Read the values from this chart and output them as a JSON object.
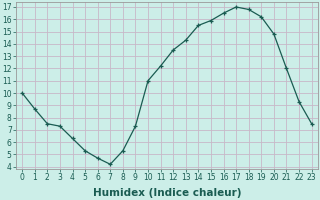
{
  "x": [
    0,
    1,
    2,
    3,
    4,
    5,
    6,
    7,
    8,
    9,
    10,
    11,
    12,
    13,
    14,
    15,
    16,
    17,
    18,
    19,
    20,
    21,
    22,
    23
  ],
  "y": [
    10.0,
    8.7,
    7.5,
    7.3,
    6.3,
    5.3,
    4.7,
    4.2,
    5.3,
    7.3,
    11.0,
    12.2,
    13.5,
    14.3,
    15.5,
    15.9,
    16.5,
    17.0,
    16.8,
    16.2,
    14.8,
    12.0,
    9.3,
    7.5
  ],
  "xlabel": "Humidex (Indice chaleur)",
  "ylim": [
    3.8,
    17.4
  ],
  "xlim": [
    -0.5,
    23.5
  ],
  "yticks": [
    4,
    5,
    6,
    7,
    8,
    9,
    10,
    11,
    12,
    13,
    14,
    15,
    16,
    17
  ],
  "xticks": [
    0,
    1,
    2,
    3,
    4,
    5,
    6,
    7,
    8,
    9,
    10,
    11,
    12,
    13,
    14,
    15,
    16,
    17,
    18,
    19,
    20,
    21,
    22,
    23
  ],
  "line_color": "#1a5c52",
  "marker_color": "#1a5c52",
  "bg_color": "#cceee8",
  "grid_color": "#c8b8c8",
  "tick_color": "#1a5c52",
  "tick_fontsize": 5.5,
  "xlabel_fontsize": 7.5,
  "spine_color": "#999999"
}
